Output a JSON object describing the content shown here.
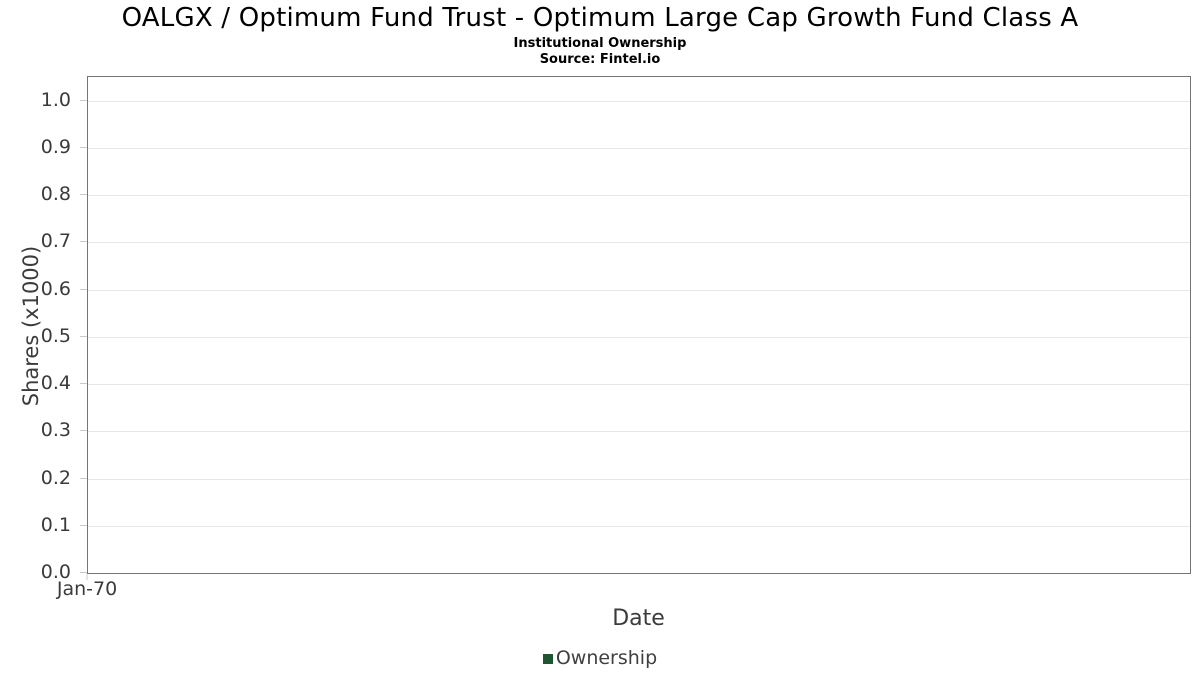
{
  "header": {
    "title": "OALGX / Optimum Fund Trust - Optimum Large Cap Growth Fund Class A",
    "subtitle": "Institutional Ownership",
    "source": "Source: Fintel.io"
  },
  "chart_data": {
    "type": "bar",
    "title": "OALGX / Optimum Fund Trust - Optimum Large Cap Growth Fund Class A",
    "subtitle": "Institutional Ownership",
    "source": "Source: Fintel.io",
    "xlabel": "Date",
    "ylabel": "Shares (x1000)",
    "x_ticks": [
      "Jan-70"
    ],
    "x_tick_positions_pct": [
      0
    ],
    "y_ticks": [
      "0.0",
      "0.1",
      "0.2",
      "0.3",
      "0.4",
      "0.5",
      "0.6",
      "0.7",
      "0.8",
      "0.9",
      "1.0"
    ],
    "ylim": [
      0,
      1.05
    ],
    "grid": true,
    "legend": {
      "position": "bottom",
      "entries": [
        {
          "label": "Ownership",
          "color": "#1e5631"
        }
      ]
    },
    "series": [
      {
        "name": "Ownership",
        "x": [],
        "values": []
      }
    ],
    "note_visible_data_points": 0
  },
  "colors": {
    "plot_border": "#757575",
    "gridline": "#e6e6e6",
    "tick_mark": "#c9c9c9",
    "axis_text": "#3b3b3b",
    "title_text": "#000000",
    "legend_green": "#1e5631",
    "background": "#ffffff"
  }
}
